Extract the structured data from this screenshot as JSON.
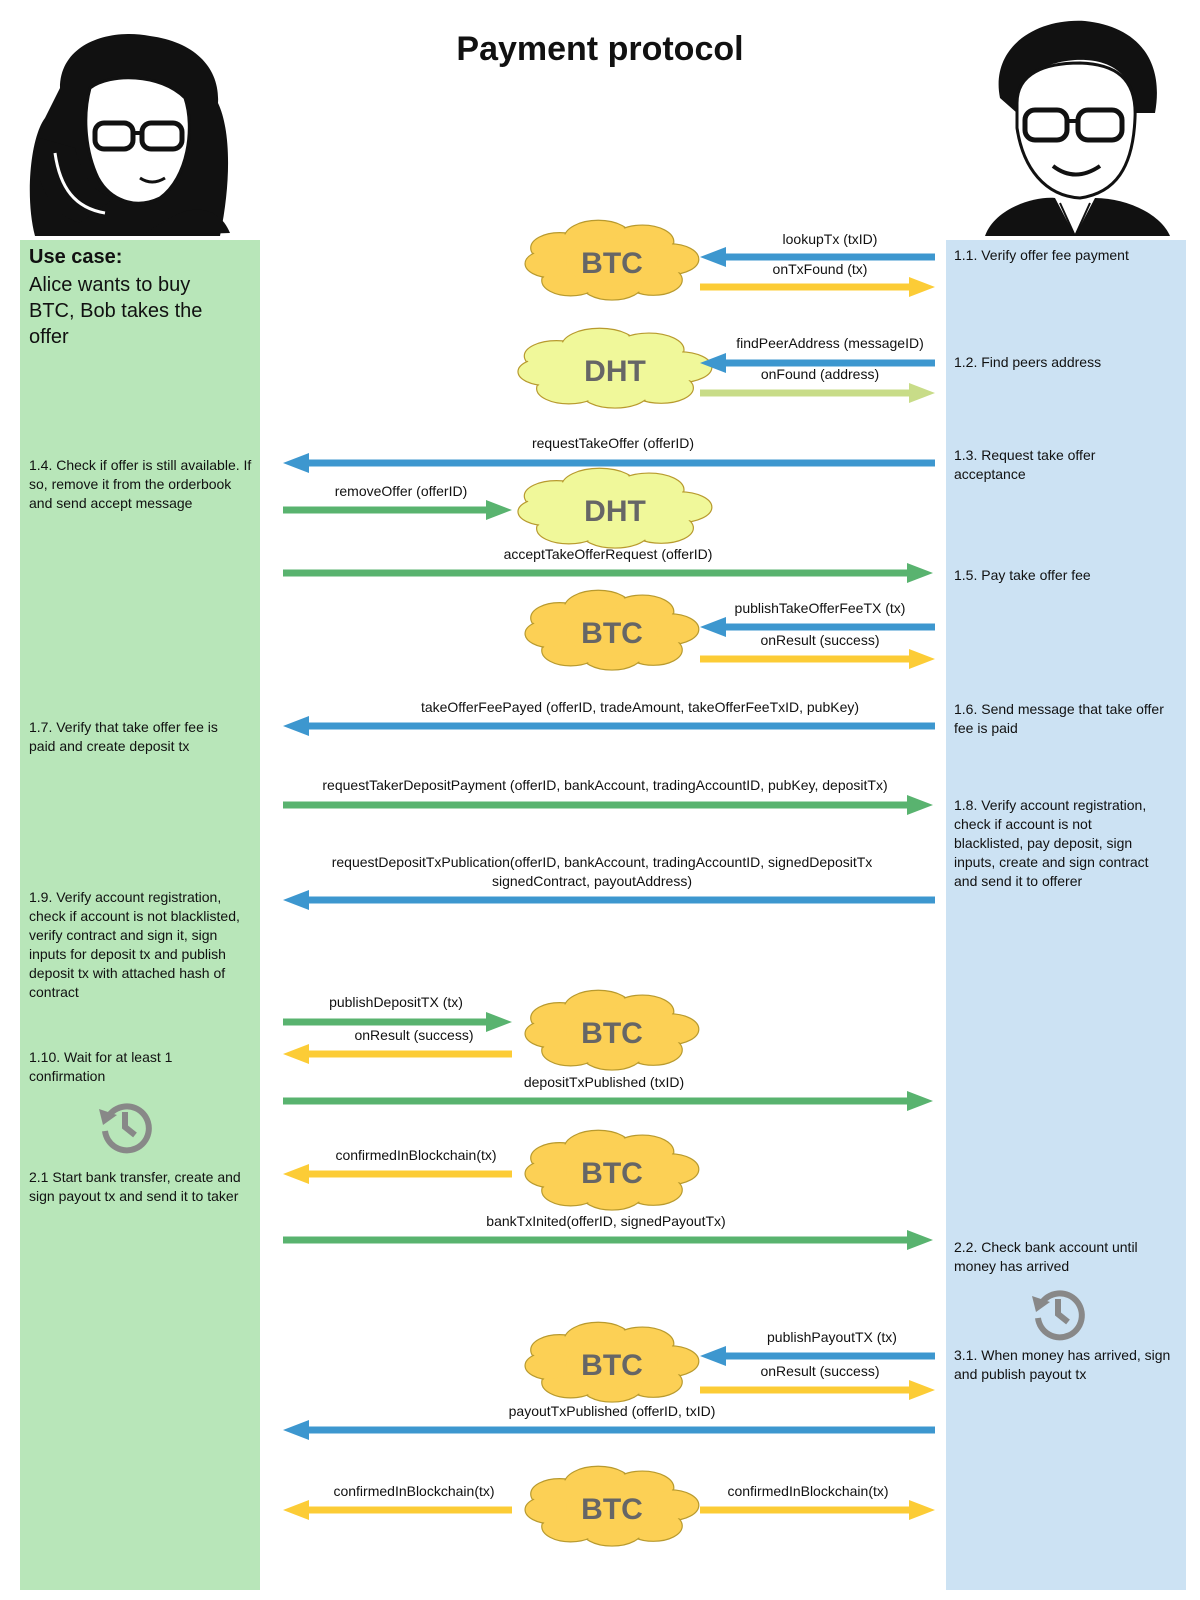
{
  "title": "Payment protocol",
  "colors": {
    "left_lane": "#b8e6b9",
    "right_lane": "#cce2f3",
    "blue_arrow": "#3d97cf",
    "yellow_arrow": "#fccc36",
    "green_arrow": "#59b36f",
    "lightgreen_arrow": "#c8dc88",
    "btc_cloud": "#fcd055",
    "dht_cloud": "#f0f89a",
    "clock_icon": "#888888"
  },
  "use_case": {
    "heading": "Use case:",
    "text": "Alice wants to buy BTC, Bob takes the offer"
  },
  "left_notes": [
    "1.4. Check if offer is still available. If so, remove it from the orderbook and send accept message",
    "1.7. Verify that take offer fee is paid and create deposit tx",
    "1.9. Verify account registration, check if account is not blacklisted, verify contract and sign it, sign inputs for deposit tx and publish deposit tx with attached hash of contract",
    "1.10. Wait for at least 1 confirmation",
    "2.1 Start bank transfer, create and sign payout tx and send it to taker"
  ],
  "right_notes": [
    "1.1. Verify offer fee payment",
    "1.2. Find peers address",
    "1.3. Request take offer acceptance",
    "1.5. Pay take offer fee",
    "1.6. Send message that take offer fee is paid",
    "1.8. Verify account registration, check if account is not blacklisted, pay deposit, sign inputs, create and sign contract and send it to offerer",
    "2.2. Check bank account until money has arrived",
    "3.1. When money has arrived, sign and publish payout tx"
  ],
  "clouds": [
    {
      "label": "BTC",
      "kind": "btc"
    },
    {
      "label": "DHT",
      "kind": "dht"
    },
    {
      "label": "DHT",
      "kind": "dht"
    },
    {
      "label": "BTC",
      "kind": "btc"
    },
    {
      "label": "BTC",
      "kind": "btc"
    },
    {
      "label": "BTC",
      "kind": "btc"
    },
    {
      "label": "BTC",
      "kind": "btc"
    },
    {
      "label": "BTC",
      "kind": "btc"
    }
  ],
  "messages": [
    {
      "text": "lookupTx (txID)",
      "color": "blue",
      "direction": "left"
    },
    {
      "text": "onTxFound (tx)",
      "color": "yellow",
      "direction": "right"
    },
    {
      "text": "findPeerAddress (messageID)",
      "color": "blue",
      "direction": "left"
    },
    {
      "text": "onFound (address)",
      "color": "lightgreen",
      "direction": "right"
    },
    {
      "text": "requestTakeOffer (offerID)",
      "color": "blue",
      "direction": "left"
    },
    {
      "text": "removeOffer (offerID)",
      "color": "green",
      "direction": "right"
    },
    {
      "text": "acceptTakeOfferRequest (offerID)",
      "color": "green",
      "direction": "right"
    },
    {
      "text": "publishTakeOfferFeeTX (tx)",
      "color": "blue",
      "direction": "left"
    },
    {
      "text": "onResult (success)",
      "color": "yellow",
      "direction": "right"
    },
    {
      "text": "takeOfferFeePayed (offerID, tradeAmount, takeOfferFeeTxID, pubKey)",
      "color": "blue",
      "direction": "left"
    },
    {
      "text": "requestTakerDepositPayment (offerID, bankAccount, tradingAccountID, pubKey, depositTx)",
      "color": "green",
      "direction": "right"
    },
    {
      "text": "requestDepositTxPublication(offerID, bankAccount, tradingAccountID, signedDepositTx",
      "text2": "signedContract, payoutAddress)",
      "color": "blue",
      "direction": "left"
    },
    {
      "text": "publishDepositTX (tx)",
      "color": "green",
      "direction": "right"
    },
    {
      "text": "onResult (success)",
      "color": "yellow",
      "direction": "left"
    },
    {
      "text": "depositTxPublished (txID)",
      "color": "green",
      "direction": "right"
    },
    {
      "text": "confirmedInBlockchain(tx)",
      "color": "yellow",
      "direction": "left"
    },
    {
      "text": "bankTxInited(offerID, signedPayoutTx)",
      "color": "green",
      "direction": "right"
    },
    {
      "text": "publishPayoutTX (tx)",
      "color": "blue",
      "direction": "left"
    },
    {
      "text": "onResult (success)",
      "color": "yellow",
      "direction": "right"
    },
    {
      "text": "payoutTxPublished (offerID, txID)",
      "color": "blue",
      "direction": "left"
    },
    {
      "text": "confirmedInBlockchain(tx)",
      "color": "yellow",
      "direction": "left"
    },
    {
      "text": "confirmedInBlockchain(tx)",
      "color": "yellow",
      "direction": "right"
    }
  ],
  "icons": [
    "alice-portrait",
    "bob-portrait",
    "history-clock-icon",
    "history-clock-icon"
  ]
}
